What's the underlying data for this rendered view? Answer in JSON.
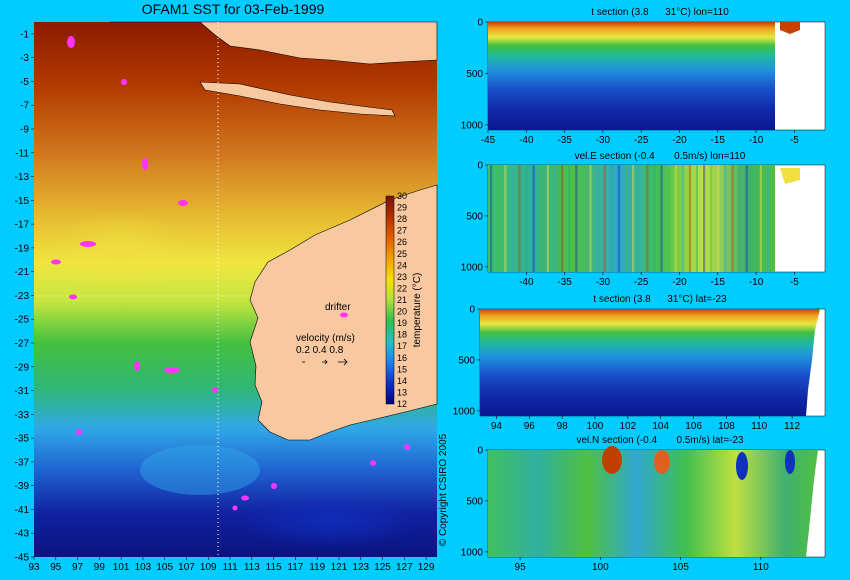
{
  "chart_data": [
    {
      "type": "heatmap",
      "title": "OFAM1 SST for 03-Feb-1999",
      "x_ticks": [
        "93",
        "95",
        "97",
        "99",
        "101",
        "103",
        "105",
        "107",
        "109",
        "111",
        "113",
        "115",
        "117",
        "119",
        "121",
        "123",
        "125",
        "127",
        "129"
      ],
      "y_ticks": [
        "-1",
        "-3",
        "-5",
        "-7",
        "-9",
        "-11",
        "-13",
        "-15",
        "-17",
        "-19",
        "-21",
        "-23",
        "-25",
        "-27",
        "-29",
        "-31",
        "-33",
        "-35",
        "-37",
        "-39",
        "-41",
        "-43",
        "-45"
      ],
      "xlim": [
        93,
        130
      ],
      "ylim": [
        -45,
        0
      ],
      "section_lines": {
        "lon": 110,
        "lat": -23
      },
      "colorbar": {
        "label": "temperature (°C)",
        "ticks": [
          "30",
          "29",
          "28",
          "27",
          "26",
          "25",
          "24",
          "23",
          "22",
          "21",
          "20",
          "19",
          "18",
          "17",
          "16",
          "15",
          "14",
          "13",
          "12"
        ],
        "range": [
          12,
          30
        ]
      },
      "legend": {
        "drifter": "drifter",
        "velocity_title": "velocity (m/s)",
        "velocity_scale": "0.2 0.4 0.8"
      },
      "copyright": "© Copyright CSIRO 2005"
    },
    {
      "type": "heatmap",
      "title": "t section (3.8      31°C) lon=110",
      "x_ticks": [
        "-45",
        "-40",
        "-35",
        "-30",
        "-25",
        "-20",
        "-15",
        "-10",
        "-5"
      ],
      "y_ticks": [
        "0",
        "500",
        "1000"
      ],
      "xlim": [
        -45,
        -1
      ],
      "ylim": [
        1050,
        0
      ],
      "variable": "temperature"
    },
    {
      "type": "heatmap",
      "title": "vel.E section (-0.4       0.5m/s) lon=110",
      "x_ticks": [
        "-40",
        "-35",
        "-30",
        "-25",
        "-20",
        "-15",
        "-10",
        "-5"
      ],
      "y_ticks": [
        "0",
        "500",
        "1000"
      ],
      "xlim": [
        -45,
        -1
      ],
      "ylim": [
        1050,
        0
      ],
      "variable": "eastward velocity"
    },
    {
      "type": "heatmap",
      "title": "t section (3.8      31°C) lat=-23",
      "x_ticks": [
        "94",
        "96",
        "98",
        "100",
        "102",
        "104",
        "106",
        "108",
        "110",
        "112"
      ],
      "y_ticks": [
        "0",
        "500",
        "1000"
      ],
      "xlim": [
        93,
        114
      ],
      "ylim": [
        1050,
        0
      ],
      "variable": "temperature"
    },
    {
      "type": "heatmap",
      "title": "vel.N section (-0.4       0.5m/s) lat=-23",
      "x_ticks": [
        "95",
        "100",
        "105",
        "110"
      ],
      "y_ticks": [
        "0",
        "500",
        "1000"
      ],
      "xlim": [
        93,
        114
      ],
      "ylim": [
        1050,
        0
      ],
      "variable": "northward velocity"
    }
  ]
}
